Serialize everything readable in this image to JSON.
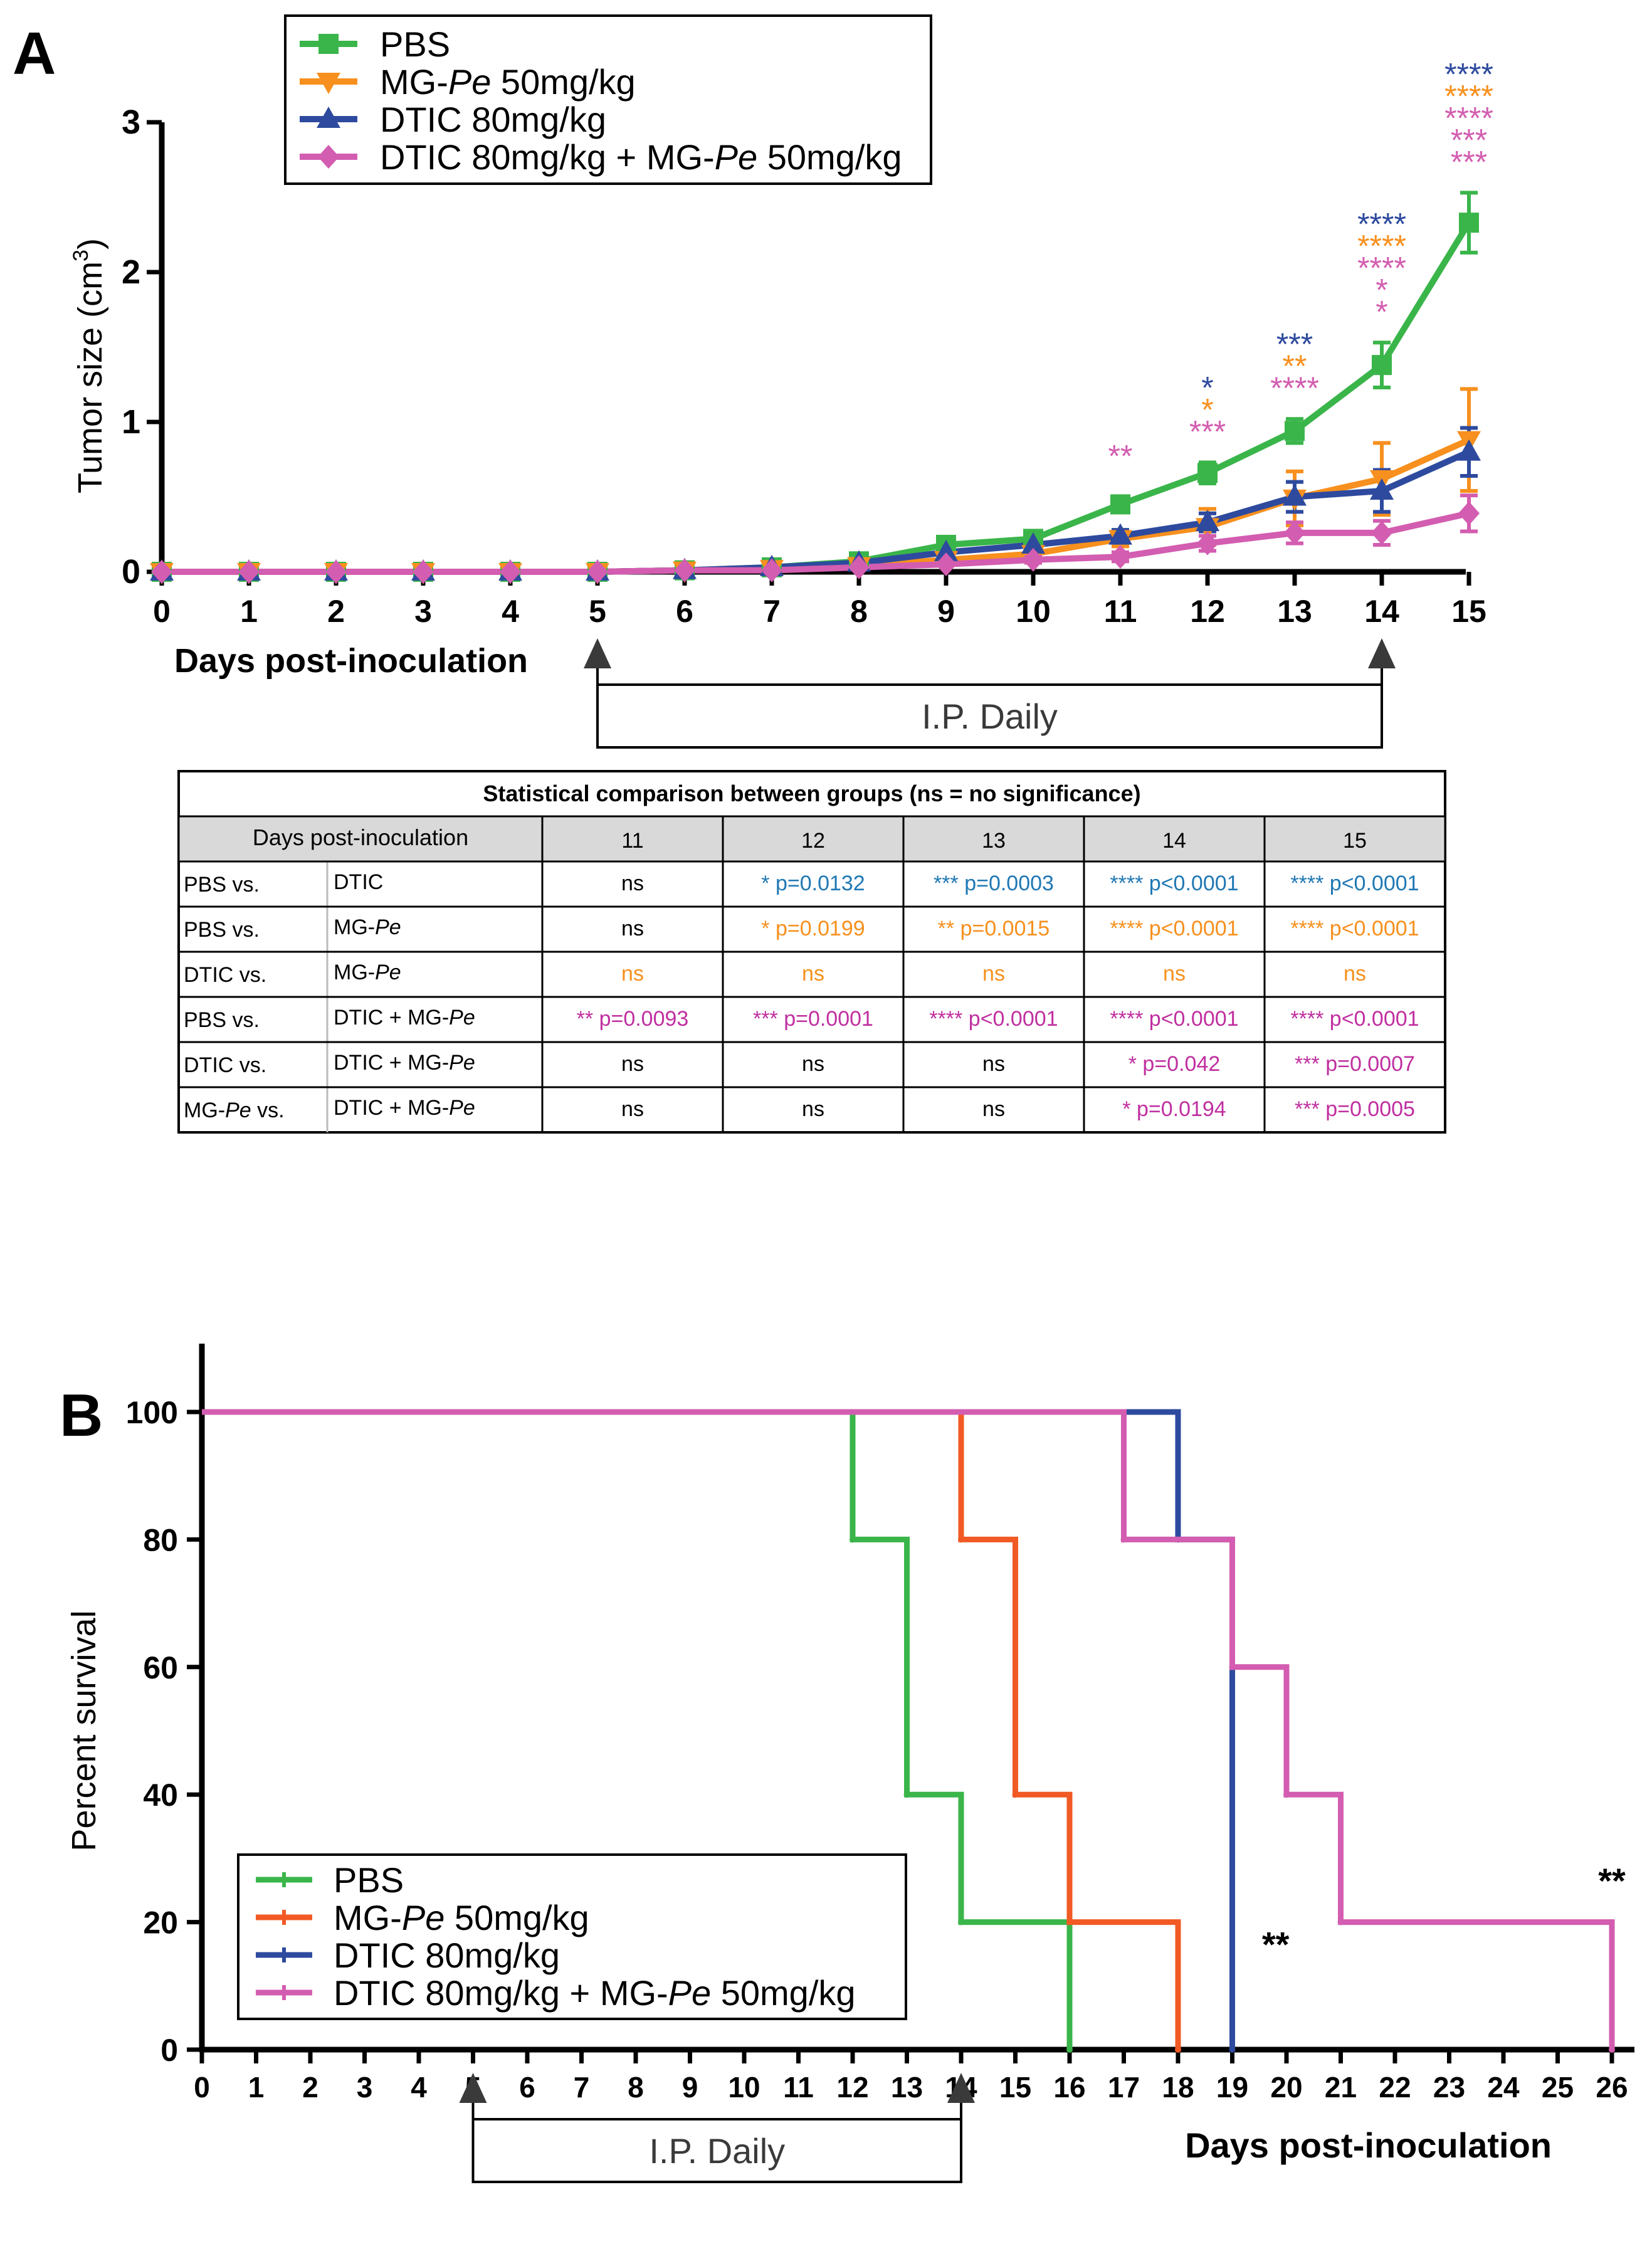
{
  "figure": {
    "panel_a_letter": "A",
    "panel_b_letter": "B"
  },
  "colors": {
    "pbs": "#3ab54a",
    "mgpe_a": "#f7901e",
    "mgpe_b": "#f15a24",
    "dtic": "#2e4a9e",
    "combo": "#d35db0",
    "table_blue": "#1f78b4",
    "table_orange": "#f7901e",
    "table_pink": "#c02fa0"
  },
  "chart_data": [
    {
      "type": "line",
      "id": "tumor-growth",
      "panel": "A",
      "ylabel_main": "Tumor size (cm",
      "ylabel_sup": "3",
      "ylabel_close": ")",
      "xlabel": "Days post-inoculation",
      "x": [
        0,
        1,
        2,
        3,
        4,
        5,
        6,
        7,
        8,
        9,
        10,
        11,
        12,
        13,
        14,
        15
      ],
      "xlim": [
        0,
        15
      ],
      "ylim": [
        0,
        3
      ],
      "yticks": [
        0,
        1,
        2,
        3
      ],
      "legend_position": "top-left",
      "series": [
        {
          "name": "PBS",
          "color_key": "pbs",
          "marker": "square",
          "values": [
            0,
            0,
            0,
            0,
            0,
            0,
            0.01,
            0.03,
            0.07,
            0.18,
            0.22,
            0.45,
            0.66,
            0.94,
            1.38,
            2.33
          ],
          "errors": [
            0,
            0,
            0,
            0,
            0,
            0,
            0.01,
            0.01,
            0.02,
            0.03,
            0.03,
            0.05,
            0.07,
            0.08,
            0.15,
            0.2
          ]
        },
        {
          "name": "MG-Pe 50mg/kg",
          "name_prefix": "MG-",
          "name_italic": "Pe",
          "name_suffix": " 50mg/kg",
          "color_key": "mgpe_a",
          "marker": "triangle-down",
          "values": [
            0,
            0,
            0,
            0,
            0,
            0,
            0.01,
            0.02,
            0.04,
            0.08,
            0.12,
            0.22,
            0.3,
            0.49,
            0.62,
            0.88
          ],
          "errors": [
            0,
            0,
            0,
            0,
            0,
            0,
            0.01,
            0.01,
            0.01,
            0.02,
            0.03,
            0.05,
            0.12,
            0.18,
            0.24,
            0.34
          ]
        },
        {
          "name": "DTIC 80mg/kg",
          "color_key": "dtic",
          "marker": "triangle-up",
          "values": [
            0,
            0,
            0,
            0,
            0,
            0,
            0.01,
            0.03,
            0.06,
            0.13,
            0.18,
            0.24,
            0.33,
            0.5,
            0.54,
            0.8
          ],
          "errors": [
            0,
            0,
            0,
            0,
            0,
            0,
            0.01,
            0.01,
            0.02,
            0.02,
            0.03,
            0.04,
            0.06,
            0.1,
            0.14,
            0.16
          ]
        },
        {
          "name": "DTIC 80mg/kg + MG-Pe 50mg/kg",
          "name_prefix": "DTIC 80mg/kg + MG-",
          "name_italic": "Pe",
          "name_suffix": " 50mg/kg",
          "color_key": "combo",
          "marker": "diamond",
          "values": [
            0,
            0,
            0,
            0,
            0,
            0,
            0.01,
            0.01,
            0.03,
            0.05,
            0.08,
            0.1,
            0.19,
            0.26,
            0.26,
            0.39
          ],
          "errors": [
            0,
            0,
            0,
            0,
            0,
            0,
            0.01,
            0.01,
            0.01,
            0.01,
            0.02,
            0.03,
            0.05,
            0.07,
            0.08,
            0.12
          ]
        }
      ],
      "annotations": [
        {
          "x": 11,
          "lines": [
            {
              "text": "**",
              "color_key": "combo"
            }
          ]
        },
        {
          "x": 12,
          "lines": [
            {
              "text": "*",
              "color_key": "dtic"
            },
            {
              "text": "*",
              "color_key": "mgpe_a"
            },
            {
              "text": "***",
              "color_key": "combo"
            }
          ]
        },
        {
          "x": 13,
          "lines": [
            {
              "text": "***",
              "color_key": "dtic"
            },
            {
              "text": "**",
              "color_key": "mgpe_a"
            },
            {
              "text": "****",
              "color_key": "combo"
            }
          ]
        },
        {
          "x": 14,
          "lines": [
            {
              "text": "****",
              "color_key": "dtic"
            },
            {
              "text": "****",
              "color_key": "mgpe_a"
            },
            {
              "text": "****",
              "color_key": "combo"
            },
            {
              "text": "*",
              "color_key": "combo"
            },
            {
              "text": "*",
              "color_key": "combo"
            }
          ]
        },
        {
          "x": 15,
          "lines": [
            {
              "text": "****",
              "color_key": "dtic"
            },
            {
              "text": "****",
              "color_key": "mgpe_a"
            },
            {
              "text": "****",
              "color_key": "combo"
            },
            {
              "text": "***",
              "color_key": "combo"
            },
            {
              "text": "***",
              "color_key": "combo"
            }
          ]
        }
      ],
      "treatment": {
        "label": "I.P. Daily",
        "start": 5,
        "end": 14
      }
    },
    {
      "type": "table",
      "id": "stats-table",
      "panel": "A",
      "title": "Statistical comparison between groups (ns = no significance)",
      "header_label": "Days post-inoculation",
      "days": [
        "11",
        "12",
        "13",
        "14",
        "15"
      ],
      "rows": [
        {
          "a": "PBS vs.",
          "b": "DTIC",
          "cells": [
            "ns",
            "* p=0.0132",
            "*** p=0.0003",
            "**** p<0.0001",
            "**** p<0.0001"
          ],
          "colors": [
            "black",
            "table_blue",
            "table_blue",
            "table_blue",
            "table_blue"
          ]
        },
        {
          "a": "PBS vs.",
          "b": "MG-Pe",
          "cells": [
            "ns",
            "* p=0.0199",
            "** p=0.0015",
            "**** p<0.0001",
            "**** p<0.0001"
          ],
          "colors": [
            "black",
            "table_orange",
            "table_orange",
            "table_orange",
            "table_orange"
          ]
        },
        {
          "a": "DTIC vs.",
          "b": "MG-Pe",
          "cells": [
            "ns",
            "ns",
            "ns",
            "ns",
            "ns"
          ],
          "colors": [
            "table_orange",
            "table_orange",
            "table_orange",
            "table_orange",
            "table_orange"
          ]
        },
        {
          "a": "PBS vs.",
          "b": "DTIC + MG-Pe",
          "cells": [
            "** p=0.0093",
            "*** p=0.0001",
            "**** p<0.0001",
            "**** p<0.0001",
            "**** p<0.0001"
          ],
          "colors": [
            "table_pink",
            "table_pink",
            "table_pink",
            "table_pink",
            "table_pink"
          ]
        },
        {
          "a": "DTIC vs.",
          "b": "DTIC + MG-Pe",
          "cells": [
            "ns",
            "ns",
            "ns",
            "* p=0.042",
            "*** p=0.0007"
          ],
          "colors": [
            "black",
            "black",
            "black",
            "table_pink",
            "table_pink"
          ]
        },
        {
          "a": "MG-Pe vs.",
          "b": "DTIC + MG-Pe",
          "cells": [
            "ns",
            "ns",
            "ns",
            "* p=0.0194",
            "*** p=0.0005"
          ],
          "colors": [
            "black",
            "black",
            "black",
            "table_pink",
            "table_pink"
          ]
        }
      ]
    },
    {
      "type": "line",
      "id": "survival",
      "panel": "B",
      "step": true,
      "ylabel": "Percent survival",
      "xlabel": "Days post-inoculation",
      "xlim": [
        0,
        26
      ],
      "ylim": [
        0,
        100
      ],
      "xticks": [
        0,
        1,
        2,
        3,
        4,
        5,
        6,
        7,
        8,
        9,
        10,
        11,
        12,
        13,
        14,
        15,
        16,
        17,
        18,
        19,
        20,
        21,
        22,
        23,
        24,
        25,
        26
      ],
      "yticks": [
        0,
        20,
        40,
        60,
        80,
        100
      ],
      "legend_position": "bottom-left",
      "series": [
        {
          "name": "PBS",
          "color_key": "pbs",
          "x": [
            0,
            12,
            13,
            14,
            16
          ],
          "y": [
            100,
            80,
            40,
            20,
            0
          ]
        },
        {
          "name": "MG-Pe 50mg/kg",
          "name_prefix": "MG-",
          "name_italic": "Pe",
          "name_suffix": " 50mg/kg",
          "color_key": "mgpe_b",
          "x": [
            0,
            14,
            15,
            16,
            18
          ],
          "y": [
            100,
            80,
            40,
            20,
            0
          ]
        },
        {
          "name": "DTIC 80mg/kg",
          "color_key": "dtic",
          "x": [
            0,
            18,
            19
          ],
          "y": [
            100,
            80,
            0
          ]
        },
        {
          "name": "DTIC 80mg/kg + MG-Pe 50mg/kg",
          "name_prefix": "DTIC 80mg/kg + MG-",
          "name_italic": "Pe",
          "name_suffix": " 50mg/kg",
          "color_key": "combo",
          "x": [
            0,
            17,
            19,
            20,
            21,
            26
          ],
          "y": [
            100,
            80,
            60,
            40,
            20,
            0
          ]
        }
      ],
      "annotations": [
        {
          "x": 19.8,
          "y": 20,
          "text": "**"
        },
        {
          "x": 26,
          "y": 30,
          "text": "**"
        }
      ],
      "treatment": {
        "label": "I.P. Daily",
        "start": 5,
        "end": 14
      }
    }
  ]
}
